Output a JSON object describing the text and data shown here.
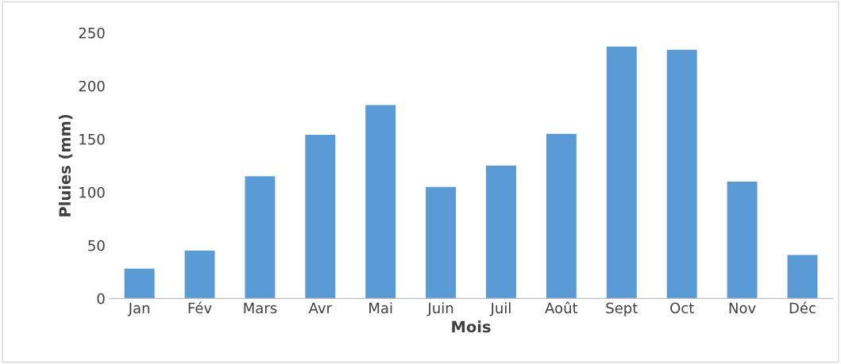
{
  "chart_data": {
    "type": "bar",
    "xlabel": "Mois",
    "ylabel": "Pluies (mm)",
    "categories": [
      "Jan",
      "Fév",
      "Mars",
      "Avr",
      "Mai",
      "Juin",
      "Juil",
      "Août",
      "Sept",
      "Oct",
      "Nov",
      "Déc"
    ],
    "values": [
      28,
      45,
      115,
      154,
      182,
      105,
      125,
      155,
      237,
      234,
      110,
      41
    ],
    "color": "#5b9bd5",
    "ylim": [
      0,
      250
    ],
    "yticks": [
      0,
      50,
      100,
      150,
      200,
      250
    ],
    "grid": false,
    "legend": false
  }
}
